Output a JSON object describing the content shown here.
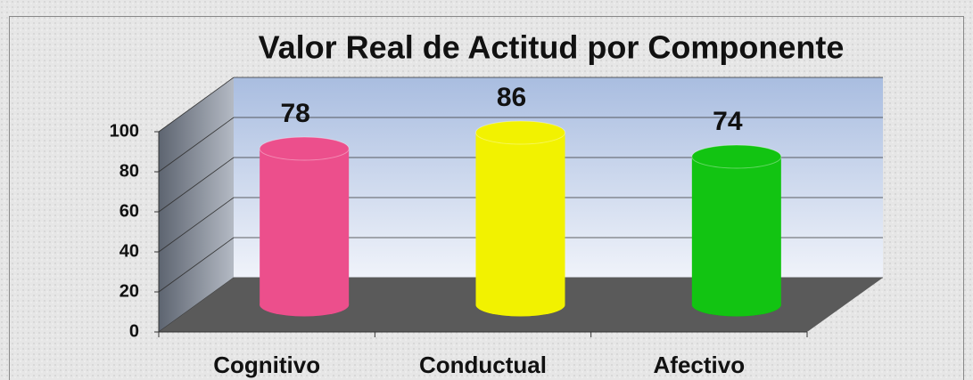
{
  "chart_data": {
    "type": "bar",
    "title": "Valor Real de Actitud por Componente",
    "categories": [
      "Cognitivo",
      "Conductual",
      "Afectivo"
    ],
    "values": [
      78,
      86,
      74
    ],
    "colors": [
      "#ec4f8c",
      "#f2f200",
      "#12c412"
    ],
    "ylim": [
      0,
      100
    ],
    "yticks": [
      0,
      20,
      40,
      60,
      80,
      100
    ],
    "grid": true
  }
}
